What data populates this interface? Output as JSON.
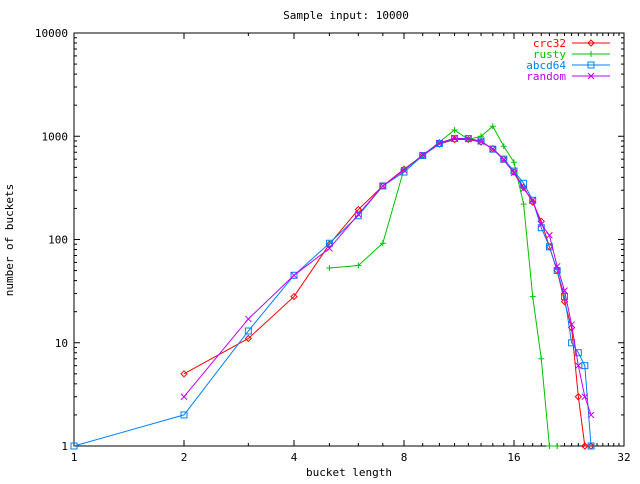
{
  "chart_data": {
    "type": "line",
    "title": "Sample input: 10000",
    "xlabel": "bucket length",
    "ylabel": "number of buckets",
    "x_scale": "log2",
    "y_scale": "log10",
    "xlim": [
      1,
      32
    ],
    "ylim": [
      1,
      10000
    ],
    "x_ticks": [
      {
        "value": 1,
        "label": "1"
      },
      {
        "value": 2,
        "label": "2"
      },
      {
        "value": 4,
        "label": "4"
      },
      {
        "value": 8,
        "label": "8"
      },
      {
        "value": 16,
        "label": "16"
      },
      {
        "value": 32,
        "label": "32"
      }
    ],
    "y_ticks": [
      {
        "value": 1,
        "label": "1"
      },
      {
        "value": 10,
        "label": "10"
      },
      {
        "value": 100,
        "label": "100"
      },
      {
        "value": 1000,
        "label": "1000"
      },
      {
        "value": 10000,
        "label": "10000"
      }
    ],
    "grid": false,
    "legend_position": "top-right",
    "series": [
      {
        "name": "crc32",
        "color": "#ff0000",
        "marker": "diamond",
        "points": [
          [
            2,
            5
          ],
          [
            3,
            11
          ],
          [
            4,
            28
          ],
          [
            5,
            90
          ],
          [
            6,
            195
          ],
          [
            7,
            330
          ],
          [
            8,
            480
          ],
          [
            9,
            650
          ],
          [
            10,
            840
          ],
          [
            11,
            930
          ],
          [
            12,
            930
          ],
          [
            13,
            880
          ],
          [
            14,
            760
          ],
          [
            15,
            600
          ],
          [
            16,
            450
          ],
          [
            17,
            320
          ],
          [
            18,
            230
          ],
          [
            19,
            150
          ],
          [
            20,
            85
          ],
          [
            21,
            50
          ],
          [
            22,
            25
          ],
          [
            23,
            14
          ],
          [
            24,
            3
          ],
          [
            25,
            1
          ],
          [
            26,
            1
          ]
        ]
      },
      {
        "name": "rusty",
        "color": "#00c000",
        "marker": "plus",
        "points": [
          [
            5,
            53
          ],
          [
            6,
            56
          ],
          [
            7,
            92
          ],
          [
            8,
            480
          ],
          [
            9,
            650
          ],
          [
            10,
            880
          ],
          [
            11,
            1150
          ],
          [
            12,
            930
          ],
          [
            13,
            1000
          ],
          [
            14,
            1250
          ],
          [
            15,
            800
          ],
          [
            16,
            560
          ],
          [
            17,
            220
          ],
          [
            18,
            28
          ],
          [
            19,
            7
          ],
          [
            20,
            1
          ],
          [
            21,
            1
          ]
        ]
      },
      {
        "name": "abcd64",
        "color": "#0080ff",
        "marker": "square",
        "points": [
          [
            1,
            1
          ],
          [
            2,
            2
          ],
          [
            3,
            13
          ],
          [
            4,
            45
          ],
          [
            5,
            92
          ],
          [
            6,
            170
          ],
          [
            7,
            330
          ],
          [
            8,
            450
          ],
          [
            9,
            650
          ],
          [
            10,
            850
          ],
          [
            11,
            950
          ],
          [
            12,
            950
          ],
          [
            13,
            900
          ],
          [
            14,
            750
          ],
          [
            15,
            600
          ],
          [
            16,
            460
          ],
          [
            17,
            350
          ],
          [
            18,
            240
          ],
          [
            19,
            130
          ],
          [
            20,
            85
          ],
          [
            21,
            50
          ],
          [
            22,
            28
          ],
          [
            23,
            10
          ],
          [
            24,
            8
          ],
          [
            25,
            6
          ],
          [
            26,
            1
          ]
        ]
      },
      {
        "name": "random",
        "color": "#c000ff",
        "marker": "x",
        "points": [
          [
            2,
            3
          ],
          [
            3,
            17
          ],
          [
            4,
            45
          ],
          [
            5,
            82
          ],
          [
            6,
            175
          ],
          [
            7,
            330
          ],
          [
            8,
            470
          ],
          [
            9,
            660
          ],
          [
            10,
            860
          ],
          [
            11,
            960
          ],
          [
            12,
            940
          ],
          [
            13,
            890
          ],
          [
            14,
            750
          ],
          [
            15,
            590
          ],
          [
            16,
            440
          ],
          [
            17,
            310
          ],
          [
            18,
            240
          ],
          [
            19,
            140
          ],
          [
            20,
            110
          ],
          [
            21,
            55
          ],
          [
            22,
            32
          ],
          [
            23,
            15
          ],
          [
            24,
            6
          ],
          [
            25,
            3
          ],
          [
            26,
            2
          ]
        ]
      }
    ]
  }
}
